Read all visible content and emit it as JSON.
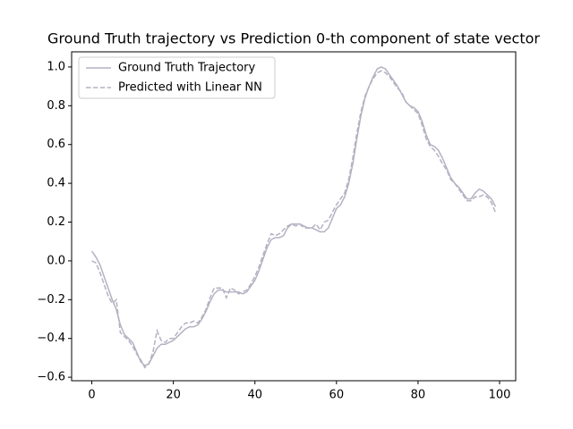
{
  "chart_data": {
    "type": "line",
    "title": "Ground Truth trajectory vs Prediction 0-th component of state vector",
    "x": [
      0,
      1,
      2,
      3,
      4,
      5,
      6,
      7,
      8,
      9,
      10,
      11,
      12,
      13,
      14,
      15,
      16,
      17,
      18,
      19,
      20,
      21,
      22,
      23,
      24,
      25,
      26,
      27,
      28,
      29,
      30,
      31,
      32,
      33,
      34,
      35,
      36,
      37,
      38,
      39,
      40,
      41,
      42,
      43,
      44,
      45,
      46,
      47,
      48,
      49,
      50,
      51,
      52,
      53,
      54,
      55,
      56,
      57,
      58,
      59,
      60,
      61,
      62,
      63,
      64,
      65,
      66,
      67,
      68,
      69,
      70,
      71,
      72,
      73,
      74,
      75,
      76,
      77,
      78,
      79,
      80,
      81,
      82,
      83,
      84,
      85,
      86,
      87,
      88,
      89,
      90,
      91,
      92,
      93,
      94,
      95,
      96,
      97,
      98,
      99
    ],
    "series": [
      {
        "name": "Ground Truth Trajectory",
        "color": "#b4b2c2",
        "dash": false,
        "values": [
          0.05,
          0.02,
          -0.02,
          -0.08,
          -0.14,
          -0.2,
          -0.25,
          -0.33,
          -0.38,
          -0.4,
          -0.42,
          -0.47,
          -0.52,
          -0.54,
          -0.53,
          -0.49,
          -0.45,
          -0.43,
          -0.43,
          -0.42,
          -0.41,
          -0.39,
          -0.37,
          -0.35,
          -0.34,
          -0.34,
          -0.33,
          -0.3,
          -0.26,
          -0.21,
          -0.17,
          -0.15,
          -0.15,
          -0.16,
          -0.16,
          -0.16,
          -0.16,
          -0.17,
          -0.16,
          -0.13,
          -0.1,
          -0.05,
          0.01,
          0.07,
          0.11,
          0.12,
          0.12,
          0.13,
          0.17,
          0.19,
          0.19,
          0.19,
          0.18,
          0.17,
          0.17,
          0.16,
          0.15,
          0.15,
          0.17,
          0.22,
          0.27,
          0.29,
          0.33,
          0.4,
          0.5,
          0.63,
          0.75,
          0.84,
          0.9,
          0.95,
          0.99,
          1.0,
          0.99,
          0.96,
          0.93,
          0.9,
          0.86,
          0.82,
          0.8,
          0.79,
          0.77,
          0.72,
          0.65,
          0.6,
          0.59,
          0.57,
          0.53,
          0.48,
          0.43,
          0.4,
          0.38,
          0.35,
          0.32,
          0.32,
          0.35,
          0.37,
          0.36,
          0.34,
          0.32,
          0.28
        ]
      },
      {
        "name": "Predicted with Linear NN",
        "color": "#b4b2c2",
        "dash": true,
        "values": [
          0.0,
          -0.01,
          -0.06,
          -0.12,
          -0.18,
          -0.22,
          -0.2,
          -0.37,
          -0.39,
          -0.41,
          -0.44,
          -0.48,
          -0.51,
          -0.55,
          -0.53,
          -0.47,
          -0.36,
          -0.41,
          -0.42,
          -0.4,
          -0.4,
          -0.37,
          -0.34,
          -0.32,
          -0.32,
          -0.31,
          -0.32,
          -0.29,
          -0.25,
          -0.19,
          -0.14,
          -0.14,
          -0.14,
          -0.19,
          -0.14,
          -0.15,
          -0.17,
          -0.16,
          -0.15,
          -0.12,
          -0.08,
          -0.03,
          0.03,
          0.09,
          0.14,
          0.13,
          0.14,
          0.16,
          0.18,
          0.19,
          0.18,
          0.19,
          0.17,
          0.17,
          0.17,
          0.19,
          0.16,
          0.2,
          0.21,
          0.25,
          0.29,
          0.32,
          0.35,
          0.42,
          0.53,
          0.66,
          0.77,
          0.85,
          0.9,
          0.94,
          0.97,
          0.98,
          0.97,
          0.95,
          0.92,
          0.89,
          0.87,
          0.82,
          0.8,
          0.78,
          0.76,
          0.7,
          0.63,
          0.59,
          0.57,
          0.54,
          0.5,
          0.47,
          0.42,
          0.4,
          0.37,
          0.34,
          0.31,
          0.31,
          0.33,
          0.33,
          0.34,
          0.33,
          0.3,
          0.25
        ]
      }
    ],
    "xlim": [
      -4.95,
      103.95
    ],
    "xticks": [
      0,
      20,
      40,
      60,
      80,
      100
    ],
    "ylim": [
      -0.618,
      1.078
    ],
    "yticks": [
      {
        "value": -0.6,
        "label": "−0.6"
      },
      {
        "value": -0.4,
        "label": "−0.4"
      },
      {
        "value": -0.2,
        "label": "−0.2"
      },
      {
        "value": 0,
        "label": "0.0"
      },
      0.2,
      0.4,
      0.6,
      0.8,
      {
        "value": 1,
        "label": "1.0"
      }
    ],
    "legend": "upper left"
  }
}
